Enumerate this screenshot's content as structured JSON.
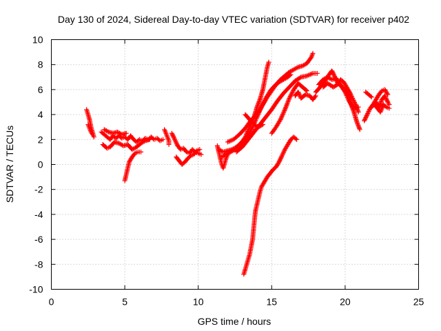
{
  "chart_data": {
    "type": "scatter",
    "title": "Day 130 of 2024, Sidereal Day-to-day VTEC variation (SDTVAR) for receiver p402",
    "xlabel": "GPS time / hours",
    "ylabel": "SDTVAR / TECUs",
    "xlim": [
      0,
      25
    ],
    "ylim": [
      -10,
      10
    ],
    "xticks": [
      0,
      5,
      10,
      15,
      20,
      25
    ],
    "yticks": [
      -10,
      -8,
      -6,
      -4,
      -2,
      0,
      2,
      4,
      6,
      8,
      10
    ],
    "xtick_labels": [
      "0",
      "5",
      "10",
      "15",
      "20",
      "25"
    ],
    "ytick_labels": [
      "-10",
      "-8",
      "-6",
      "-4",
      "-2",
      "0",
      "2",
      "4",
      "6",
      "8",
      "10"
    ],
    "grid": true,
    "marker": "+",
    "color": "#ff0000",
    "series": [
      {
        "name": "SDTVAR",
        "tracks": [
          [
            [
              2.4,
              4.4
            ],
            [
              2.5,
              4.0
            ],
            [
              2.6,
              3.6
            ],
            [
              2.7,
              3.0
            ],
            [
              2.8,
              2.6
            ],
            [
              2.9,
              2.2
            ]
          ],
          [
            [
              2.5,
              3.2
            ],
            [
              2.6,
              2.9
            ],
            [
              2.7,
              2.6
            ],
            [
              2.8,
              2.4
            ]
          ],
          [
            [
              3.4,
              2.6
            ],
            [
              3.6,
              2.4
            ],
            [
              3.8,
              2.2
            ],
            [
              4.0,
              2.0
            ],
            [
              4.2,
              2.3
            ],
            [
              4.4,
              2.1
            ],
            [
              4.6,
              2.3
            ],
            [
              4.8,
              2.1
            ],
            [
              5.0,
              2.2
            ],
            [
              5.2,
              2.0
            ],
            [
              5.4,
              2.3
            ],
            [
              5.6,
              2.0
            ],
            [
              5.8,
              1.8
            ],
            [
              6.0,
              2.0
            ],
            [
              6.2,
              1.9
            ],
            [
              6.4,
              2.1
            ],
            [
              6.6,
              2.0
            ],
            [
              6.8,
              2.2
            ],
            [
              7.0,
              2.0
            ],
            [
              7.2,
              2.1
            ],
            [
              7.4,
              1.9
            ],
            [
              7.6,
              2.0
            ]
          ],
          [
            [
              3.5,
              1.6
            ],
            [
              3.8,
              1.3
            ],
            [
              4.0,
              1.4
            ],
            [
              4.3,
              1.8
            ],
            [
              4.6,
              1.7
            ],
            [
              4.9,
              1.5
            ],
            [
              5.2,
              1.6
            ],
            [
              5.5,
              1.2
            ],
            [
              5.8,
              1.4
            ],
            [
              6.1,
              1.7
            ],
            [
              6.4,
              1.9
            ],
            [
              6.7,
              2.0
            ]
          ],
          [
            [
              3.6,
              2.8
            ],
            [
              3.9,
              2.6
            ],
            [
              4.2,
              2.5
            ],
            [
              4.5,
              2.6
            ],
            [
              4.8,
              2.4
            ],
            [
              5.1,
              2.5
            ]
          ],
          [
            [
              5.0,
              -1.3
            ],
            [
              5.1,
              -0.8
            ],
            [
              5.2,
              -0.3
            ],
            [
              5.3,
              0.2
            ],
            [
              5.5,
              0.6
            ],
            [
              5.7,
              0.9
            ],
            [
              5.9,
              1.0
            ],
            [
              6.1,
              1.0
            ]
          ],
          [
            [
              7.7,
              2.8
            ],
            [
              7.8,
              2.5
            ],
            [
              7.9,
              2.2
            ],
            [
              8.0,
              1.9
            ],
            [
              8.0,
              1.6
            ]
          ],
          [
            [
              8.2,
              2.5
            ],
            [
              8.4,
              2.0
            ],
            [
              8.6,
              1.5
            ],
            [
              8.8,
              1.2
            ],
            [
              9.0,
              1.3
            ],
            [
              9.2,
              1.0
            ],
            [
              9.4,
              0.9
            ],
            [
              9.6,
              1.2
            ],
            [
              9.8,
              1.0
            ],
            [
              10.0,
              0.9
            ],
            [
              10.2,
              0.8
            ]
          ],
          [
            [
              8.5,
              0.6
            ],
            [
              8.7,
              0.3
            ],
            [
              8.9,
              0.0
            ],
            [
              9.1,
              0.2
            ],
            [
              9.3,
              0.5
            ],
            [
              9.5,
              0.7
            ],
            [
              9.7,
              0.8
            ],
            [
              9.9,
              1.1
            ],
            [
              10.1,
              1.2
            ]
          ],
          [
            [
              11.3,
              1.5
            ],
            [
              11.4,
              1.0
            ],
            [
              11.5,
              0.5
            ],
            [
              11.6,
              0.0
            ],
            [
              11.7,
              -0.3
            ],
            [
              11.8,
              0.1
            ],
            [
              11.9,
              0.5
            ],
            [
              12.0,
              0.8
            ]
          ],
          [
            [
              11.4,
              1.2
            ],
            [
              11.7,
              1.0
            ],
            [
              12.0,
              1.1
            ],
            [
              12.3,
              1.2
            ],
            [
              12.6,
              1.4
            ],
            [
              12.9,
              1.7
            ],
            [
              13.2,
              2.2
            ],
            [
              13.5,
              3.0
            ],
            [
              13.8,
              3.8
            ],
            [
              14.0,
              4.6
            ],
            [
              14.2,
              5.2
            ],
            [
              14.4,
              6.0
            ],
            [
              14.5,
              6.6
            ],
            [
              14.6,
              7.2
            ],
            [
              14.7,
              7.8
            ],
            [
              14.8,
              8.2
            ]
          ],
          [
            [
              11.6,
              0.6
            ],
            [
              11.9,
              0.8
            ],
            [
              12.2,
              1.0
            ],
            [
              12.5,
              1.2
            ],
            [
              12.8,
              1.5
            ],
            [
              13.1,
              1.8
            ],
            [
              13.4,
              2.3
            ],
            [
              13.7,
              3.0
            ],
            [
              14.0,
              3.8
            ],
            [
              14.3,
              4.6
            ],
            [
              14.6,
              5.3
            ],
            [
              14.9,
              5.9
            ],
            [
              15.2,
              6.3
            ],
            [
              15.5,
              6.6
            ],
            [
              15.8,
              6.8
            ],
            [
              16.1,
              7.0
            ],
            [
              16.3,
              7.2
            ]
          ],
          [
            [
              12.0,
              1.8
            ],
            [
              12.4,
              2.0
            ],
            [
              12.8,
              2.4
            ],
            [
              13.2,
              2.9
            ],
            [
              13.5,
              3.4
            ],
            [
              13.8,
              3.8
            ],
            [
              14.1,
              4.2
            ],
            [
              14.4,
              4.8
            ],
            [
              14.7,
              5.4
            ],
            [
              15.0,
              5.9
            ],
            [
              15.3,
              6.4
            ],
            [
              15.6,
              6.8
            ],
            [
              15.9,
              7.1
            ],
            [
              16.2,
              7.4
            ],
            [
              16.5,
              7.6
            ],
            [
              16.8,
              7.8
            ],
            [
              17.1,
              7.9
            ],
            [
              17.4,
              8.1
            ],
            [
              17.7,
              8.6
            ],
            [
              17.8,
              8.9
            ]
          ],
          [
            [
              12.6,
              1.0
            ],
            [
              13.0,
              1.4
            ],
            [
              13.4,
              2.0
            ],
            [
              13.8,
              2.6
            ],
            [
              14.2,
              3.2
            ],
            [
              14.6,
              3.8
            ],
            [
              15.0,
              4.4
            ],
            [
              15.4,
              5.1
            ],
            [
              15.8,
              5.7
            ],
            [
              16.2,
              6.2
            ],
            [
              16.6,
              6.7
            ],
            [
              17.0,
              7.0
            ],
            [
              17.4,
              7.1
            ],
            [
              17.8,
              7.3
            ],
            [
              18.1,
              7.3
            ]
          ],
          [
            [
              13.2,
              4.0
            ],
            [
              13.5,
              3.6
            ],
            [
              13.8,
              3.2
            ],
            [
              14.1,
              3.0
            ],
            [
              14.4,
              3.2
            ]
          ],
          [
            [
              15.0,
              2.5
            ],
            [
              15.3,
              3.0
            ],
            [
              15.6,
              3.6
            ],
            [
              15.9,
              4.4
            ],
            [
              16.2,
              5.3
            ],
            [
              16.5,
              6.0
            ],
            [
              16.8,
              6.5
            ],
            [
              17.1,
              6.2
            ],
            [
              17.4,
              5.9
            ]
          ],
          [
            [
              16.6,
              5.5
            ],
            [
              16.8,
              5.8
            ],
            [
              17.0,
              5.3
            ],
            [
              17.3,
              5.6
            ],
            [
              17.6,
              5.5
            ],
            [
              17.8,
              5.2
            ],
            [
              18.0,
              5.5
            ]
          ],
          [
            [
              13.1,
              -8.8
            ],
            [
              13.2,
              -8.4
            ],
            [
              13.3,
              -8.0
            ],
            [
              13.4,
              -7.6
            ],
            [
              13.5,
              -7.2
            ],
            [
              13.6,
              -6.6
            ],
            [
              13.7,
              -6.0
            ],
            [
              13.75,
              -5.4
            ],
            [
              13.8,
              -4.8
            ],
            [
              13.85,
              -4.2
            ],
            [
              13.9,
              -3.7
            ],
            [
              14.0,
              -3.2
            ],
            [
              14.1,
              -2.7
            ],
            [
              14.2,
              -2.2
            ],
            [
              14.3,
              -1.8
            ],
            [
              14.5,
              -1.4
            ],
            [
              14.7,
              -1.0
            ],
            [
              14.9,
              -0.7
            ],
            [
              15.1,
              -0.4
            ],
            [
              15.3,
              -0.2
            ],
            [
              15.5,
              0.2
            ],
            [
              15.7,
              0.7
            ],
            [
              15.9,
              1.2
            ],
            [
              16.1,
              1.6
            ],
            [
              16.3,
              2.0
            ],
            [
              16.5,
              2.2
            ],
            [
              16.7,
              2.0
            ]
          ],
          [
            [
              18.0,
              5.8
            ],
            [
              18.3,
              6.2
            ],
            [
              18.6,
              6.6
            ],
            [
              18.9,
              7.2
            ],
            [
              19.1,
              7.5
            ],
            [
              19.3,
              7.0
            ],
            [
              19.5,
              6.5
            ],
            [
              19.7,
              6.8
            ],
            [
              19.9,
              6.6
            ],
            [
              20.1,
              6.2
            ],
            [
              20.3,
              5.8
            ],
            [
              20.5,
              5.3
            ],
            [
              20.7,
              4.8
            ],
            [
              20.9,
              4.2
            ]
          ],
          [
            [
              18.2,
              6.4
            ],
            [
              18.5,
              6.8
            ],
            [
              18.8,
              7.0
            ],
            [
              19.1,
              6.8
            ],
            [
              19.4,
              6.9
            ],
            [
              19.7,
              6.3
            ],
            [
              20.0,
              6.0
            ],
            [
              20.2,
              5.6
            ],
            [
              20.4,
              4.8
            ],
            [
              20.6,
              4.2
            ],
            [
              20.8,
              3.4
            ],
            [
              21.0,
              2.8
            ]
          ],
          [
            [
              18.5,
              6.2
            ],
            [
              18.8,
              6.5
            ],
            [
              19.2,
              6.2
            ],
            [
              19.6,
              6.5
            ],
            [
              20.0,
              5.8
            ],
            [
              20.3,
              5.0
            ],
            [
              20.6,
              4.5
            ],
            [
              20.9,
              4.6
            ]
          ],
          [
            [
              21.4,
              5.8
            ],
            [
              21.6,
              5.6
            ],
            [
              21.8,
              5.4
            ]
          ],
          [
            [
              21.3,
              3.5
            ],
            [
              21.5,
              4.0
            ],
            [
              21.7,
              4.5
            ],
            [
              21.9,
              4.8
            ],
            [
              22.1,
              5.2
            ],
            [
              22.3,
              5.6
            ],
            [
              22.5,
              5.9
            ],
            [
              22.7,
              6.0
            ],
            [
              22.9,
              5.6
            ]
          ],
          [
            [
              21.8,
              4.6
            ],
            [
              22.0,
              4.8
            ],
            [
              22.2,
              4.5
            ],
            [
              22.4,
              4.2
            ],
            [
              22.6,
              4.8
            ],
            [
              22.8,
              4.6
            ],
            [
              23.0,
              4.5
            ]
          ],
          [
            [
              22.1,
              5.0
            ],
            [
              22.3,
              4.6
            ],
            [
              22.5,
              5.2
            ],
            [
              22.7,
              5.5
            ],
            [
              22.9,
              5.0
            ],
            [
              23.0,
              4.8
            ]
          ]
        ]
      }
    ]
  }
}
